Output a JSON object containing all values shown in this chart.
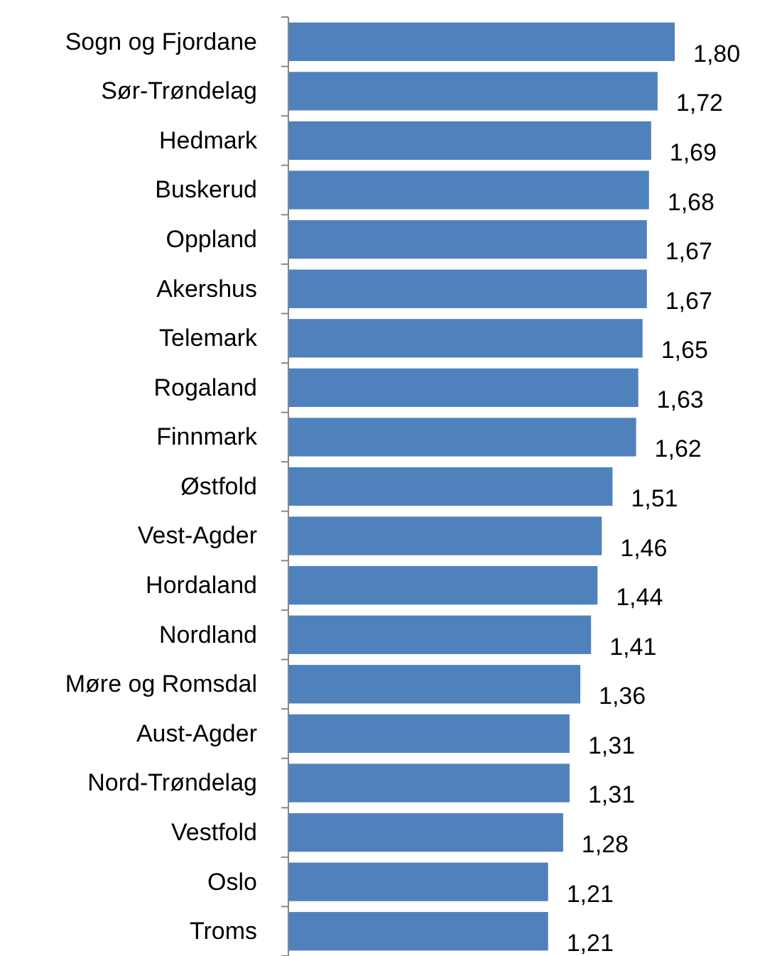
{
  "chart_data": {
    "type": "bar",
    "orientation": "horizontal",
    "categories": [
      "Sogn og Fjordane",
      "Sør-Trøndelag",
      "Hedmark",
      "Buskerud",
      "Oppland",
      "Akershus",
      "Telemark",
      "Rogaland",
      "Finnmark",
      "Østfold",
      "Vest-Agder",
      "Hordaland",
      "Nordland",
      "Møre og Romsdal",
      "Aust-Agder",
      "Nord-Trøndelag",
      "Vestfold",
      "Oslo",
      "Troms"
    ],
    "values": [
      1.8,
      1.72,
      1.69,
      1.68,
      1.67,
      1.67,
      1.65,
      1.63,
      1.62,
      1.51,
      1.46,
      1.44,
      1.41,
      1.36,
      1.31,
      1.31,
      1.28,
      1.21,
      1.21
    ],
    "value_labels": [
      "1,80",
      "1,72",
      "1,69",
      "1,68",
      "1,67",
      "1,67",
      "1,65",
      "1,63",
      "1,62",
      "1,51",
      "1,46",
      "1,44",
      "1,41",
      "1,36",
      "1,31",
      "1,31",
      "1,28",
      "1,21",
      "1,21"
    ],
    "color": "#4f81bd",
    "tick_labels": "y"
  }
}
